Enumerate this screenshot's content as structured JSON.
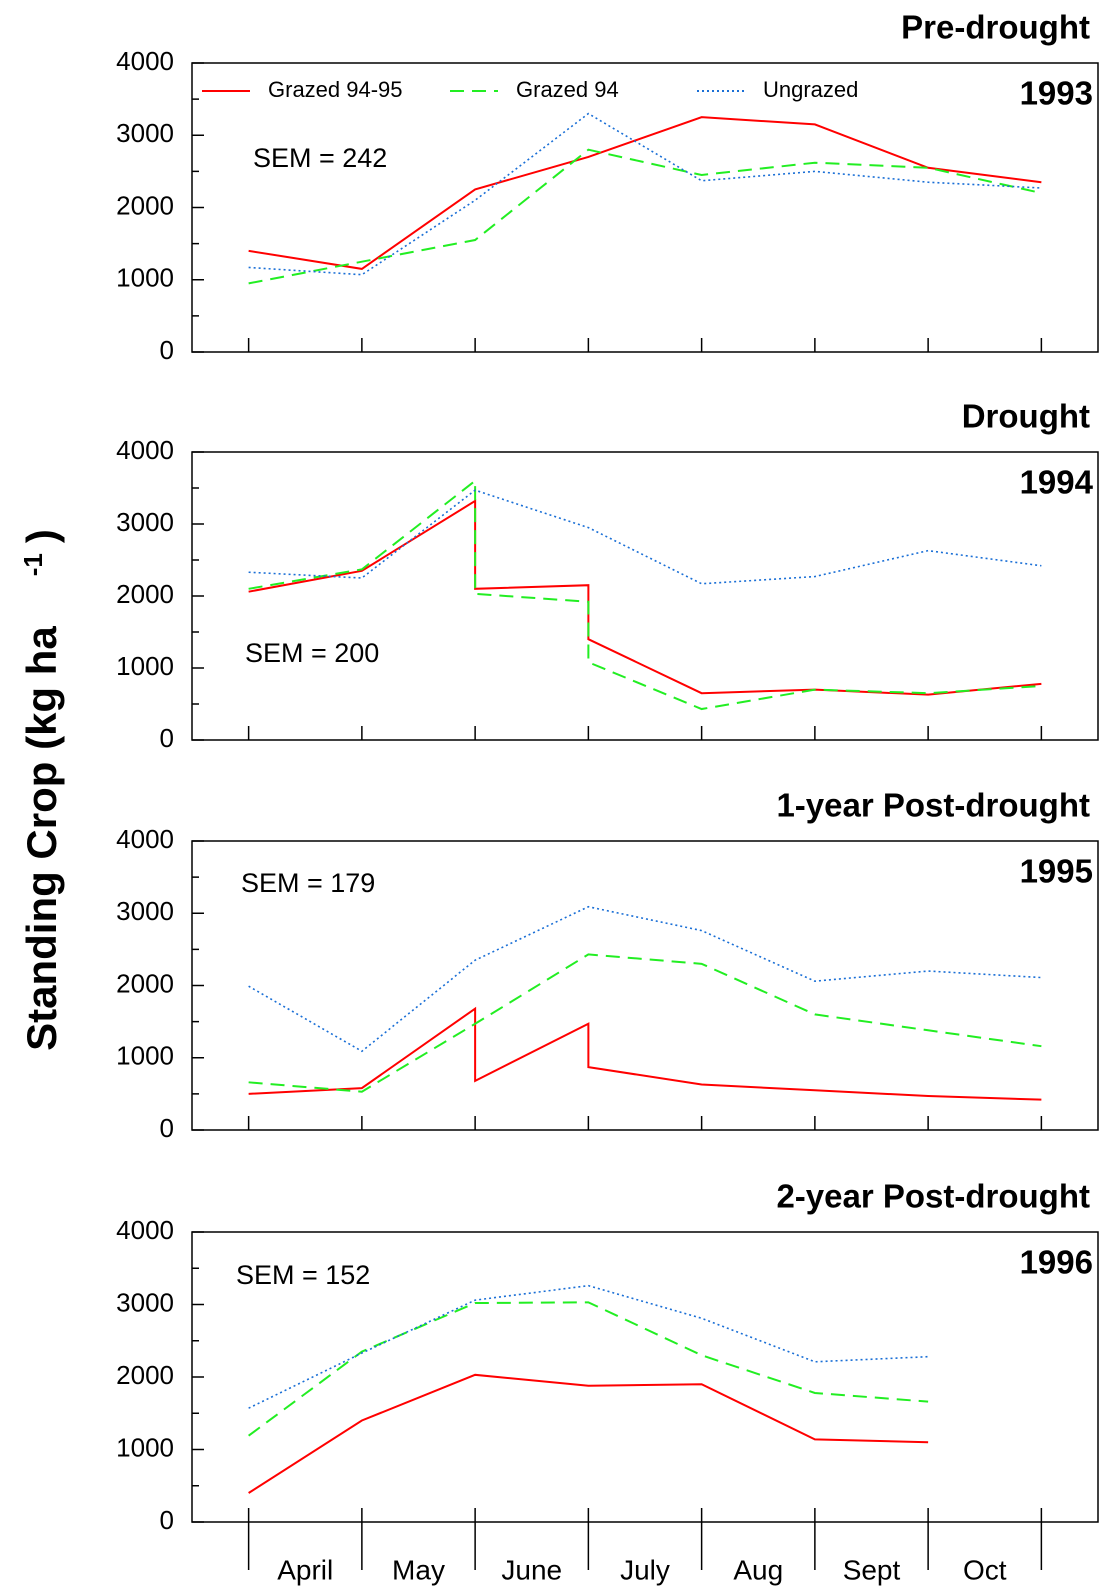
{
  "chart_data": [
    {
      "type": "line",
      "title": "Pre-drought",
      "annotation": "1993",
      "sem": "SEM = 242",
      "xlim": [
        -0.5,
        7.5
      ],
      "xticks": [
        0,
        1,
        2,
        3,
        4,
        5,
        6,
        7
      ],
      "ylim": [
        0,
        4000
      ],
      "yticks": [
        0,
        1000,
        2000,
        3000,
        4000
      ],
      "yminor": [
        500,
        1500,
        2500,
        3500
      ],
      "legend": true,
      "series": [
        {
          "name": "Grazed 94-95",
          "color": "#ff0000",
          "dash": "solid",
          "x": [
            0,
            1,
            2,
            3,
            4,
            5,
            6,
            7
          ],
          "values": [
            1400,
            1150,
            2250,
            2700,
            3250,
            3150,
            2550,
            2350
          ]
        },
        {
          "name": "Grazed 94",
          "color": "#22ee22",
          "dash": "dashed",
          "x": [
            0,
            1,
            2,
            3,
            4,
            5,
            6,
            7
          ],
          "values": [
            950,
            1250,
            1550,
            2800,
            2450,
            2620,
            2550,
            2200
          ]
        },
        {
          "name": "Ungrazed",
          "color": "#1a6fd6",
          "dash": "dotted",
          "x": [
            0,
            1,
            2,
            3,
            4,
            5,
            6,
            7
          ],
          "values": [
            1170,
            1070,
            2100,
            3300,
            2370,
            2500,
            2350,
            2270
          ]
        }
      ]
    },
    {
      "type": "line",
      "title": "Drought",
      "annotation": "1994",
      "sem": "SEM = 200",
      "xlim": [
        -0.5,
        7.5
      ],
      "xticks": [
        0,
        1,
        2,
        3,
        4,
        5,
        6,
        7
      ],
      "ylim": [
        0,
        4000
      ],
      "yticks": [
        0,
        1000,
        2000,
        3000,
        4000
      ],
      "yminor": [
        500,
        1500,
        2500,
        3500
      ],
      "series": [
        {
          "color": "#ff0000",
          "dash": "solid",
          "x": [
            0,
            1,
            2,
            2,
            3,
            3,
            4,
            5,
            6,
            7
          ],
          "values": [
            2060,
            2350,
            3320,
            2100,
            2150,
            1400,
            650,
            700,
            630,
            780
          ]
        },
        {
          "color": "#22ee22",
          "dash": "dashed",
          "x": [
            0,
            1,
            2,
            2,
            3,
            3,
            4,
            5,
            6,
            7
          ],
          "values": [
            2100,
            2370,
            3600,
            2030,
            1920,
            1080,
            430,
            700,
            650,
            750
          ]
        },
        {
          "color": "#1a6fd6",
          "dash": "dotted",
          "x": [
            0,
            1,
            2,
            3,
            4,
            5,
            6,
            7
          ],
          "values": [
            2330,
            2250,
            3470,
            2950,
            2170,
            2270,
            2630,
            2420
          ]
        }
      ]
    },
    {
      "type": "line",
      "title": "1-year Post-drought",
      "annotation": "1995",
      "sem": "SEM = 179",
      "xlim": [
        -0.5,
        7.5
      ],
      "xticks": [
        0,
        1,
        2,
        3,
        4,
        5,
        6,
        7
      ],
      "ylim": [
        0,
        4000
      ],
      "yticks": [
        0,
        1000,
        2000,
        3000,
        4000
      ],
      "yminor": [
        500,
        1500,
        2500,
        3500
      ],
      "series": [
        {
          "color": "#ff0000",
          "dash": "solid",
          "x": [
            0,
            1,
            2,
            2,
            3,
            3,
            4,
            5,
            6,
            7
          ],
          "values": [
            500,
            580,
            1680,
            680,
            1470,
            870,
            630,
            550,
            470,
            420
          ]
        },
        {
          "color": "#22ee22",
          "dash": "dashed",
          "x": [
            0,
            1,
            2,
            3,
            4,
            5,
            6,
            7
          ],
          "values": [
            660,
            530,
            1470,
            2430,
            2300,
            1600,
            1380,
            1160
          ]
        },
        {
          "color": "#1a6fd6",
          "dash": "dotted",
          "x": [
            0,
            1,
            2,
            3,
            4,
            5,
            6,
            7
          ],
          "values": [
            1990,
            1090,
            2350,
            3090,
            2760,
            2060,
            2200,
            2110
          ]
        }
      ]
    },
    {
      "type": "line",
      "title": "2-year Post-drought",
      "annotation": "1996",
      "sem": "SEM = 152",
      "xlim": [
        -0.5,
        7.5
      ],
      "xticks": [
        0,
        1,
        2,
        3,
        4,
        5,
        6,
        7
      ],
      "categories": [
        "April",
        "May",
        "June",
        "July",
        "Aug",
        "Sept",
        "Oct"
      ],
      "ylim": [
        0,
        4000
      ],
      "yticks": [
        0,
        1000,
        2000,
        3000,
        4000
      ],
      "yminor": [
        500,
        1500,
        2500,
        3500
      ],
      "series": [
        {
          "color": "#ff0000",
          "dash": "solid",
          "x": [
            0,
            1,
            2,
            3,
            4,
            5,
            6
          ],
          "values": [
            400,
            1400,
            2030,
            1880,
            1900,
            1140,
            1100
          ]
        },
        {
          "color": "#22ee22",
          "dash": "dashed",
          "x": [
            0,
            1,
            2,
            3,
            4,
            5,
            6
          ],
          "values": [
            1190,
            2350,
            3020,
            3030,
            2300,
            1780,
            1660
          ]
        },
        {
          "color": "#1a6fd6",
          "dash": "dotted",
          "x": [
            0,
            1,
            2,
            3,
            4,
            5,
            6
          ],
          "values": [
            1570,
            2330,
            3060,
            3260,
            2810,
            2210,
            2280
          ]
        }
      ]
    }
  ],
  "ylabel": "Standing Crop (kg ha",
  "ylabel_superscript": "-1",
  "ylabel_close": ")"
}
